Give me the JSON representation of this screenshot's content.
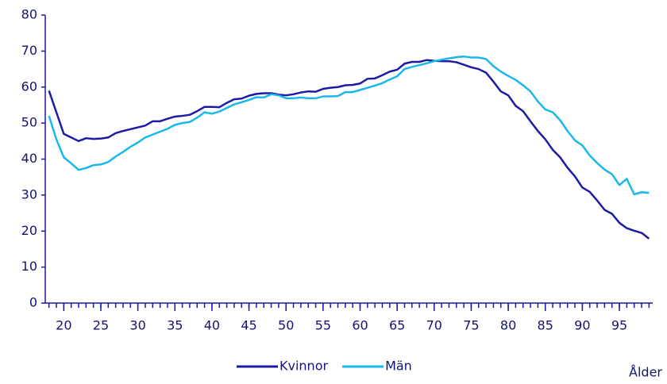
{
  "chart_data": {
    "type": "line",
    "x_label": "Ålder",
    "x": [
      18,
      19,
      20,
      21,
      22,
      23,
      24,
      25,
      26,
      27,
      28,
      29,
      30,
      31,
      32,
      33,
      34,
      35,
      36,
      37,
      38,
      39,
      40,
      41,
      42,
      43,
      44,
      45,
      46,
      47,
      48,
      49,
      50,
      51,
      52,
      53,
      54,
      55,
      56,
      57,
      58,
      59,
      60,
      61,
      62,
      63,
      64,
      65,
      66,
      67,
      68,
      69,
      70,
      71,
      72,
      73,
      74,
      75,
      76,
      77,
      78,
      79,
      80,
      81,
      82,
      83,
      84,
      85,
      86,
      87,
      88,
      89,
      90,
      91,
      92,
      93,
      94,
      95,
      96,
      97,
      98,
      99
    ],
    "series": [
      {
        "name": "Kvinnor",
        "color": "#1d1aa3",
        "values": [
          59,
          53,
          47,
          46,
          45,
          45.8,
          45.6,
          45.7,
          46,
          47.2,
          47.8,
          48.3,
          48.8,
          49.3,
          50.5,
          50.5,
          51.2,
          51.8,
          52,
          52.3,
          53.3,
          54.5,
          54.5,
          54.4,
          55.6,
          56.6,
          56.8,
          57.6,
          58.1,
          58.3,
          58.3,
          57.9,
          57.7,
          58,
          58.5,
          58.8,
          58.7,
          59.5,
          59.8,
          60,
          60.5,
          60.6,
          61,
          62.3,
          62.4,
          63.3,
          64.3,
          64.8,
          66.5,
          67,
          67,
          67.5,
          67.3,
          67.2,
          67.2,
          66.9,
          66.2,
          65.5,
          65,
          64,
          61.5,
          58.8,
          57.7,
          54.8,
          53.3,
          50.5,
          47.8,
          45.5,
          42.6,
          40.5,
          37.6,
          35.2,
          32.1,
          30.9,
          28.5,
          25.9,
          24.8,
          22.3,
          20.8,
          20.1,
          19.5,
          17.9
        ]
      },
      {
        "name": "Män",
        "color": "#1ab7ea",
        "values": [
          52,
          45.5,
          40.5,
          38.8,
          37,
          37.5,
          38.3,
          38.5,
          39.2,
          40.7,
          42,
          43.4,
          44.6,
          46,
          46.8,
          47.6,
          48.4,
          49.5,
          50,
          50.3,
          51.5,
          53,
          52.6,
          53.2,
          54.2,
          55.2,
          55.8,
          56.4,
          57.2,
          57.1,
          58,
          57.7,
          56.9,
          56.9,
          57.1,
          56.9,
          56.9,
          57.4,
          57.4,
          57.5,
          58.6,
          58.6,
          59.2,
          59.8,
          60.4,
          61.1,
          62.1,
          63,
          65,
          65.6,
          66.1,
          66.6,
          67.2,
          67.6,
          68,
          68.3,
          68.5,
          68.2,
          68.2,
          67.8,
          65.8,
          64.3,
          63.1,
          62,
          60.5,
          58.8,
          56,
          53.8,
          53,
          50.8,
          47.8,
          45.2,
          43.8,
          41,
          38.9,
          37.1,
          35.8,
          32.8,
          34.5,
          30.2,
          30.8,
          30.6
        ]
      }
    ],
    "xlim": [
      17.5,
      99.5
    ],
    "xticks": [
      20,
      25,
      30,
      35,
      40,
      45,
      50,
      55,
      60,
      65,
      70,
      75,
      80,
      85,
      90,
      95
    ],
    "ylim": [
      0,
      80
    ],
    "yticks": [
      0,
      10,
      20,
      30,
      40,
      50,
      60,
      70,
      80
    ],
    "grid": false,
    "legend": "bottom"
  }
}
